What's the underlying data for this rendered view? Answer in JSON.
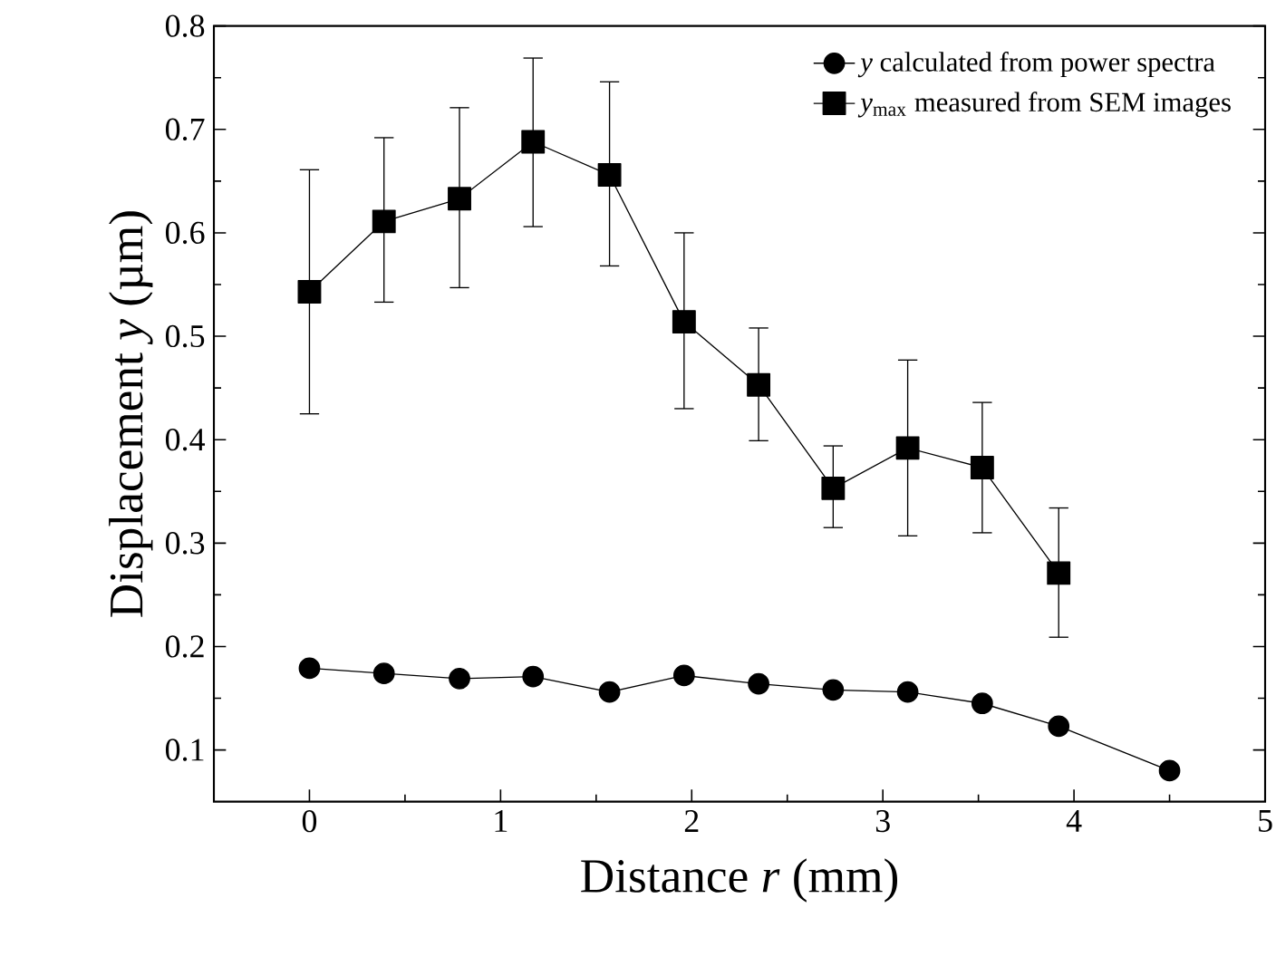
{
  "chart_data": {
    "type": "line",
    "xlabel": "Distance *r* (mm)",
    "ylabel": "Displacement *y* (µm)",
    "xlim": [
      -0.5,
      5
    ],
    "ylim": [
      0.05,
      0.8
    ],
    "xticks": [
      0,
      1,
      2,
      3,
      4,
      5
    ],
    "yticks": [
      0.1,
      0.2,
      0.3,
      0.4,
      0.5,
      0.6,
      0.7,
      0.8
    ],
    "legend": "top right",
    "grid": false,
    "series": [
      {
        "name": "*y* calculated from power spectra",
        "color": "#000000",
        "marker": "circle",
        "x": [
          0,
          0.39,
          0.785,
          1.17,
          1.57,
          1.96,
          2.35,
          2.74,
          3.13,
          3.52,
          3.92,
          4.5
        ],
        "values": [
          0.179,
          0.174,
          0.169,
          0.171,
          0.156,
          0.172,
          0.164,
          0.158,
          0.156,
          0.145,
          0.123,
          0.08
        ]
      },
      {
        "name": "*y*$_{max}$ measured from SEM images",
        "color": "#000000",
        "marker": "square",
        "x": [
          0,
          0.39,
          0.785,
          1.17,
          1.57,
          1.96,
          2.35,
          2.74,
          3.13,
          3.52,
          3.92
        ],
        "values": [
          0.543,
          0.611,
          0.633,
          0.688,
          0.656,
          0.514,
          0.453,
          0.353,
          0.392,
          0.373,
          0.271
        ],
        "errors": [
          [
            0.425,
            0.661
          ],
          [
            0.533,
            0.692
          ],
          [
            0.547,
            0.721
          ],
          [
            0.606,
            0.769
          ],
          [
            0.568,
            0.746
          ],
          [
            0.43,
            0.6
          ],
          [
            0.399,
            0.508
          ],
          [
            0.315,
            0.394
          ],
          [
            0.307,
            0.477
          ],
          [
            0.31,
            0.436
          ],
          [
            0.209,
            0.334
          ]
        ]
      }
    ]
  }
}
